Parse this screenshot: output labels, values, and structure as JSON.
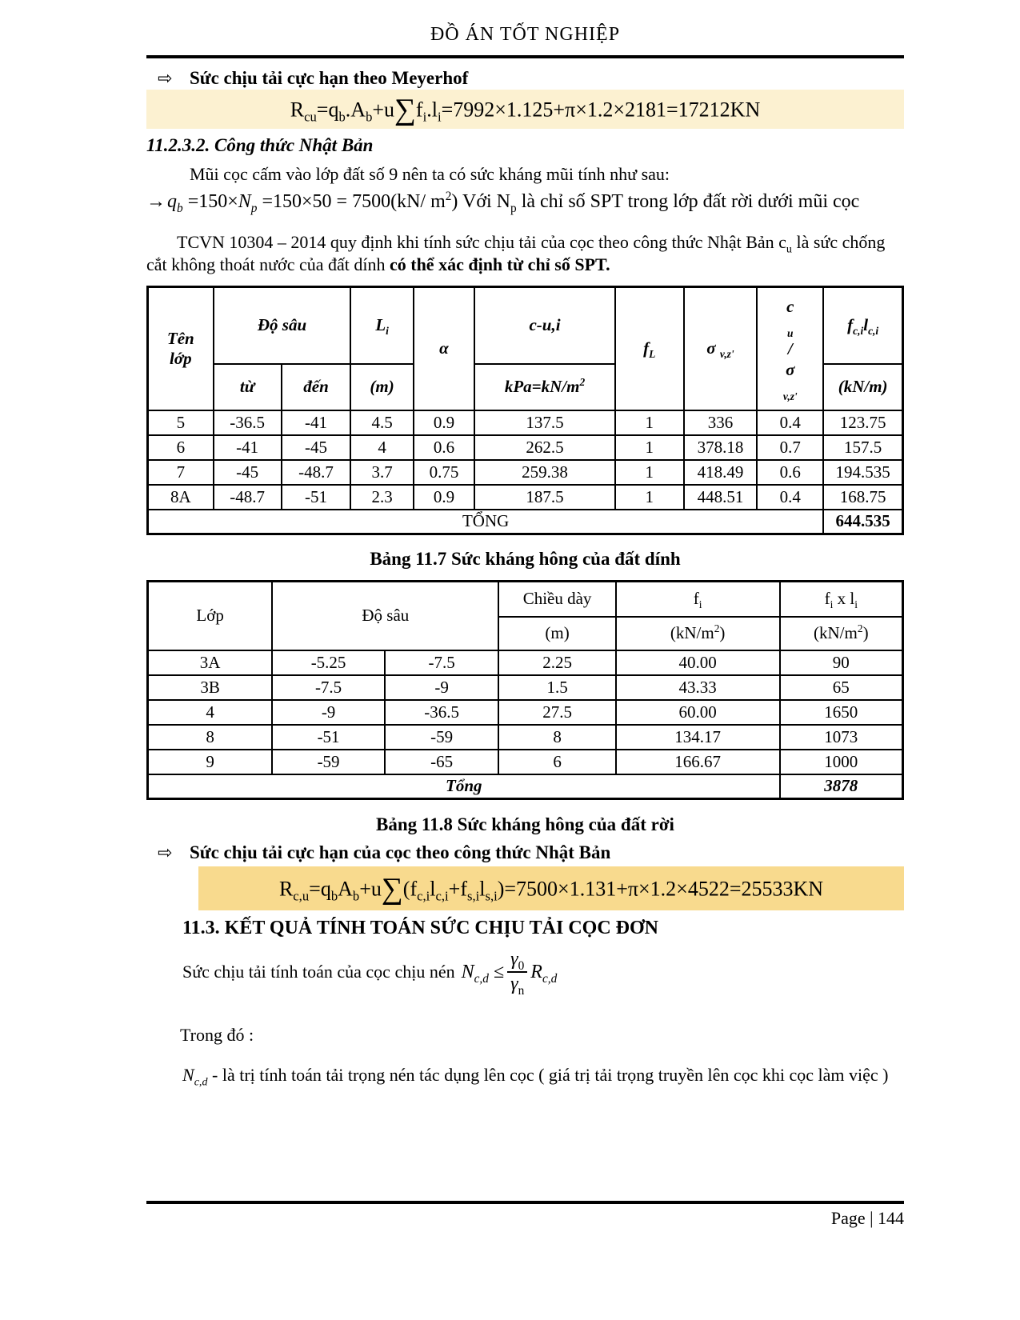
{
  "page": {
    "title": "ĐỒ ÁN TỐT NGHIỆP",
    "footer_page_label": "Page | 144"
  },
  "colors": {
    "highlight_cream": "#fcf1d1",
    "highlight_gold": "#f8da8e",
    "text": "#000000",
    "background": "#ffffff"
  },
  "bullet1": {
    "arrow": "⇨",
    "label": "Sức chịu tải cực hạn theo Meyerhof"
  },
  "bullet2": {
    "arrow": "⇨",
    "label": "Sức chịu tải cực hạn của cọc theo công thức Nhật Bản"
  },
  "headings": {
    "s11232": "11.2.3.2. Công thức Nhật Bản",
    "s113": "11.3. KẾT QUẢ TÍNH TOÁN SỨC CHỊU TẢI CỌC ĐƠN"
  },
  "paragraphs": {
    "mui_coc": "Mũi cọc cấm vào  lớp đất số 9 nên ta có sức kháng mũi tính như sau:",
    "suc_chiu_prefix": "Sức chịu tải tính toán của cọc chịu nén",
    "trong_do": "Trong đó :"
  },
  "rich": {
    "formula_meyerhof": [
      {
        "t": "R"
      },
      {
        "sub": "cu"
      },
      {
        "t": "=q"
      },
      {
        "sub": "b"
      },
      {
        "t": ".A"
      },
      {
        "sub": "b"
      },
      {
        "t": "+u"
      },
      {
        "t": "∑",
        "c": "sum"
      },
      {
        "t": "f"
      },
      {
        "sub": "i"
      },
      {
        "t": ".l"
      },
      {
        "sub": "i"
      },
      {
        "t": "=7992×1.125+π×1.2×2181=17212KN"
      }
    ],
    "formula_qb": [
      {
        "t": "→",
        "c": "arr"
      },
      {
        "t": "q",
        "c": "it"
      },
      {
        "sub": "b",
        "c": "it"
      },
      {
        "t": " =150×"
      },
      {
        "t": "N",
        "c": "it"
      },
      {
        "sub": "p",
        "c": "it"
      },
      {
        "t": " =150×50 = 7500(kN/ m"
      },
      {
        "sup": "2"
      },
      {
        "t": ")  Với N"
      },
      {
        "sub": "p"
      },
      {
        "t": " là chỉ số SPT trong lớp đất rời dưới mũi cọc"
      }
    ],
    "tcvn": [
      {
        "t": "TCVN 10304 – 2014 quy định khi tính sức chịu tải của cọc theo công thức Nhật Bản c"
      },
      {
        "sub": "u"
      },
      {
        "t": " là sức chống cắt không thoát nước của đất dính "
      },
      {
        "t": "có thể xác định từ chỉ số SPT.",
        "c": "b"
      }
    ],
    "formula_japan": [
      {
        "t": "R"
      },
      {
        "sub": "c,u"
      },
      {
        "t": "=q"
      },
      {
        "sub": "b"
      },
      {
        "t": "A"
      },
      {
        "sub": "b"
      },
      {
        "t": "+u"
      },
      {
        "t": "∑",
        "c": "sum"
      },
      {
        "t": "(f"
      },
      {
        "sub": "c,i"
      },
      {
        "t": "l"
      },
      {
        "sub": "c,i"
      },
      {
        "t": "+f"
      },
      {
        "sub": "s,i"
      },
      {
        "t": "l"
      },
      {
        "sub": "s,i"
      },
      {
        "t": ")=7500×1.131+π×1.2×4522=25533KN"
      }
    ],
    "ncd_lhs": [
      {
        "t": "N",
        "c": "it"
      },
      {
        "sub": "c,d",
        "c": "it"
      },
      {
        "t": " ≤ "
      }
    ],
    "frac_num": [
      {
        "t": "γ",
        "c": "it"
      },
      {
        "sub": "0"
      }
    ],
    "frac_den": [
      {
        "t": "γ",
        "c": "it"
      },
      {
        "sub": "n"
      }
    ],
    "ncd_rhs": [
      {
        "t": "R",
        "c": "it"
      },
      {
        "sub": "c,d",
        "c": "it"
      }
    ],
    "ncd_desc": [
      {
        "t": "N",
        "c": "it"
      },
      {
        "sub": "c,d",
        "c": "it"
      },
      {
        "t": " - là trị tính toán tải trọng nén tác dụng lên cọc ( giá trị tải trọng truyền lên cọc khi cọc làm việc )"
      }
    ]
  },
  "table1": {
    "caption": "Bảng 11.7 Sức kháng hông của đất dính",
    "head": {
      "ten_lop": "Tên\nlớp",
      "do_sau": "Độ sâu",
      "li": [
        {
          "t": "L"
        },
        {
          "sub": "i"
        }
      ],
      "alpha": "α",
      "cui": "c-u,i",
      "fl": [
        {
          "t": "f"
        },
        {
          "sub": "L"
        }
      ],
      "sigma": [
        {
          "t": "σ "
        },
        {
          "sub": "v,z'"
        }
      ],
      "cu_sigma_1": [
        {
          "t": "c"
        },
        {
          "sub": "u"
        },
        {
          "t": "/"
        }
      ],
      "cu_sigma_2": [
        {
          "t": "σ "
        },
        {
          "sub": "v,z'"
        }
      ],
      "fcilci": [
        {
          "t": "f"
        },
        {
          "sub": "c,i"
        },
        {
          "t": "l"
        },
        {
          "sub": "c,i"
        }
      ],
      "tu": "từ",
      "den": "đến",
      "m": "(m)",
      "kpa": [
        {
          "t": "kPa=kN/m"
        },
        {
          "sup": "2"
        }
      ],
      "knm": "(kN/m)"
    },
    "rows": [
      [
        "5",
        "-36.5",
        "-41",
        "4.5",
        "0.9",
        "137.5",
        "1",
        "336",
        "0.4",
        "123.75"
      ],
      [
        "6",
        "-41",
        "-45",
        "4",
        "0.6",
        "262.5",
        "1",
        "378.18",
        "0.7",
        "157.5"
      ],
      [
        "7",
        "-45",
        "-48.7",
        "3.7",
        "0.75",
        "259.38",
        "1",
        "418.49",
        "0.6",
        "194.535"
      ],
      [
        "8A",
        "-48.7",
        "-51",
        "2.3",
        "0.9",
        "187.5",
        "1",
        "448.51",
        "0.4",
        "168.75"
      ]
    ],
    "total_label": "TỔNG",
    "total_value": "644.535"
  },
  "table2": {
    "caption": "Bảng 11.8 Sức kháng hông của đất rời",
    "head": {
      "lop": "Lớp",
      "do_sau": "Độ sâu",
      "chieu_day": "Chiều dày",
      "fi": [
        {
          "t": "f"
        },
        {
          "sub": "i"
        }
      ],
      "fixli": [
        {
          "t": "f"
        },
        {
          "sub": "i"
        },
        {
          "t": " x l"
        },
        {
          "sub": "i"
        }
      ],
      "m": "(m)",
      "knm2_fi": [
        {
          "t": "(kN/m"
        },
        {
          "sup": "2"
        },
        {
          "t": ")"
        }
      ],
      "knm2_fixli": [
        {
          "t": "(kN/m"
        },
        {
          "sup": "2"
        },
        {
          "t": ")"
        }
      ]
    },
    "rows": [
      [
        "3A",
        "-5.25",
        "-7.5",
        "2.25",
        "40.00",
        "90"
      ],
      [
        "3B",
        "-7.5",
        "-9",
        "1.5",
        "43.33",
        "65"
      ],
      [
        "4",
        "-9",
        "-36.5",
        "27.5",
        "60.00",
        "1650"
      ],
      [
        "8",
        "-51",
        "-59",
        "8",
        "134.17",
        "1073"
      ],
      [
        "9",
        "-59",
        "-65",
        "6",
        "166.67",
        "1000"
      ]
    ],
    "total_label": "Tổng",
    "total_value": "3878"
  }
}
